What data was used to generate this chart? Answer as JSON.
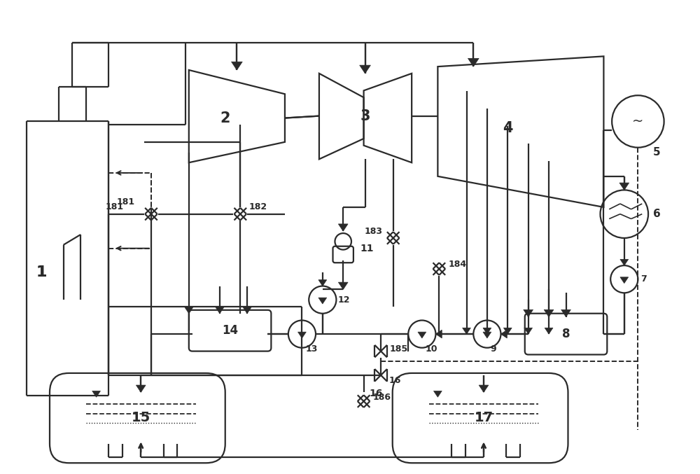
{
  "bg_color": "#ffffff",
  "lc": "#2a2a2a",
  "lw": 1.6,
  "dlw": 1.4
}
